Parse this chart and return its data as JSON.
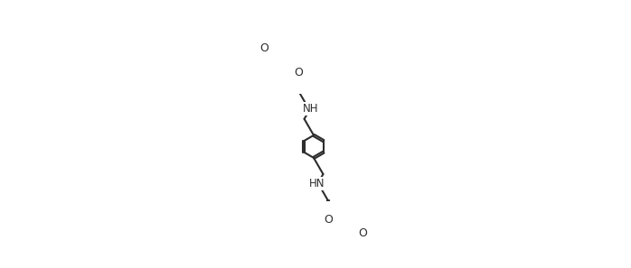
{
  "background_color": "#ffffff",
  "line_color": "#2d2d2d",
  "line_width": 1.5,
  "figsize": [
    6.98,
    2.97
  ],
  "dpi": 100,
  "xlim": [
    0,
    14
  ],
  "ylim": [
    0,
    6
  ]
}
